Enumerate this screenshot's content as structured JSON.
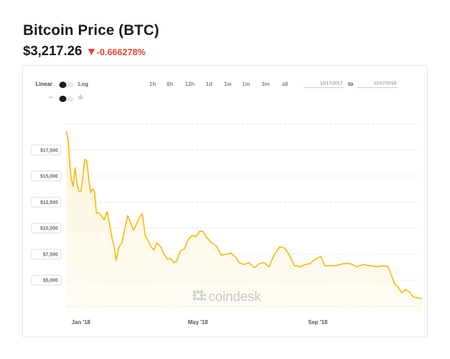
{
  "header": {
    "title": "Bitcoin Price (BTC)",
    "price": "$3,217.26",
    "change": "-0.666278%",
    "change_color": "#e8462b"
  },
  "controls": {
    "scale_linear": "Linear",
    "scale_log": "Log",
    "ranges": [
      "1h",
      "6h",
      "12h",
      "1d",
      "1w",
      "1m",
      "3m",
      "all"
    ],
    "date_from": "12/17/2017",
    "date_to_label": "to",
    "date_to": "12/17/2018",
    "line_icon": "line-chart-icon",
    "candle_icon": "candlestick-icon"
  },
  "watermark": "coindesk",
  "colors": {
    "line": "#f5b800",
    "fill": "#fdf3d6",
    "grid": "#e4e4e4"
  },
  "chart_data": {
    "type": "area",
    "title": "",
    "xlabel": "",
    "ylabel": "",
    "ylim": [
      2000,
      20500
    ],
    "yticks": [
      5000,
      7500,
      10000,
      12500,
      15000,
      17500
    ],
    "ytick_labels": [
      "$5,000",
      "$7,500",
      "$10,000",
      "$12,500",
      "$15,000",
      "$17,500"
    ],
    "xticks": [
      "2018-01-01",
      "2018-05-01",
      "2018-09-01"
    ],
    "xtick_labels": [
      "Jan '18",
      "May '18",
      "Sep '18"
    ],
    "grid": true,
    "legend": "none",
    "series": [
      {
        "x": [
          "2017-12-17",
          "2017-12-19",
          "2017-12-21",
          "2017-12-22",
          "2017-12-24",
          "2017-12-26",
          "2017-12-28",
          "2017-12-30",
          "2018-01-01",
          "2018-01-03",
          "2018-01-05",
          "2018-01-07",
          "2018-01-09",
          "2018-01-11",
          "2018-01-13",
          "2018-01-15",
          "2018-01-17",
          "2018-01-19",
          "2018-01-22",
          "2018-01-25",
          "2018-01-28",
          "2018-01-31",
          "2018-02-02",
          "2018-02-04",
          "2018-02-06",
          "2018-02-09",
          "2018-02-12",
          "2018-02-15",
          "2018-02-18",
          "2018-02-21",
          "2018-02-24",
          "2018-02-27",
          "2018-03-02",
          "2018-03-05",
          "2018-03-08",
          "2018-03-11",
          "2018-03-14",
          "2018-03-17",
          "2018-03-20",
          "2018-03-24",
          "2018-03-28",
          "2018-03-31",
          "2018-04-03",
          "2018-04-06",
          "2018-04-09",
          "2018-04-13",
          "2018-04-17",
          "2018-04-21",
          "2018-04-25",
          "2018-04-29",
          "2018-05-03",
          "2018-05-06",
          "2018-05-10",
          "2018-05-15",
          "2018-05-20",
          "2018-05-25",
          "2018-05-30",
          "2018-06-04",
          "2018-06-09",
          "2018-06-12",
          "2018-06-17",
          "2018-06-22",
          "2018-06-28",
          "2018-07-03",
          "2018-07-08",
          "2018-07-13",
          "2018-07-18",
          "2018-07-24",
          "2018-07-29",
          "2018-08-03",
          "2018-08-08",
          "2018-08-14",
          "2018-08-19",
          "2018-08-24",
          "2018-08-29",
          "2018-09-04",
          "2018-09-08",
          "2018-09-13",
          "2018-09-20",
          "2018-09-27",
          "2018-10-04",
          "2018-10-11",
          "2018-10-18",
          "2018-10-25",
          "2018-11-01",
          "2018-11-08",
          "2018-11-12",
          "2018-11-15",
          "2018-11-19",
          "2018-11-22",
          "2018-11-26",
          "2018-11-30",
          "2018-12-04",
          "2018-12-08",
          "2018-12-13",
          "2018-12-17"
        ],
        "values": [
          19300,
          18500,
          15700,
          14800,
          14000,
          15800,
          14300,
          13500,
          13500,
          15000,
          16600,
          16500,
          14800,
          13400,
          13800,
          13500,
          11400,
          11500,
          11200,
          10800,
          11600,
          10100,
          9000,
          8300,
          6900,
          8200,
          8600,
          9900,
          11200,
          10500,
          9800,
          10400,
          11000,
          11400,
          9300,
          8800,
          8200,
          7900,
          8600,
          8200,
          7400,
          7000,
          7100,
          6700,
          6800,
          7800,
          8000,
          8900,
          9300,
          9200,
          9700,
          9700,
          9100,
          8600,
          8300,
          7400,
          7500,
          7600,
          7200,
          6700,
          6500,
          6700,
          6200,
          6600,
          6700,
          6300,
          7400,
          8200,
          8100,
          7400,
          6400,
          6300,
          6500,
          6600,
          7000,
          7300,
          6400,
          6400,
          6400,
          6600,
          6600,
          6300,
          6500,
          6400,
          6300,
          6400,
          6300,
          5600,
          4600,
          4400,
          3800,
          4100,
          3900,
          3400,
          3300,
          3200
        ]
      }
    ]
  }
}
